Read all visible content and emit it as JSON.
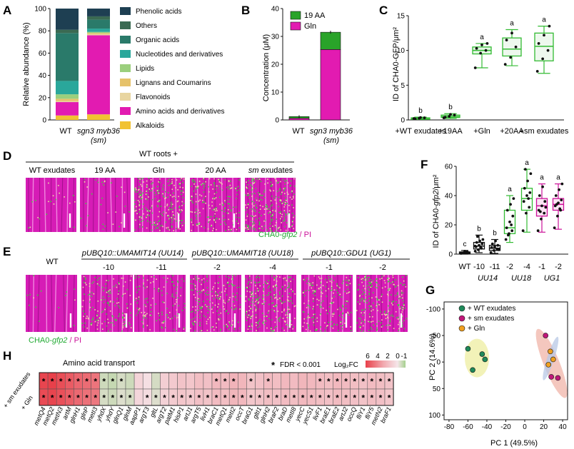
{
  "panels": {
    "A": {
      "label": "A",
      "chart_data": {
        "type": "bar",
        "stacked": true,
        "categories": [
          "WT",
          "sgn3 myb36"
        ],
        "category_sublabels": [
          "",
          "(sm)"
        ],
        "ylabel": "Relative abundance (%)",
        "ylim": [
          0,
          100
        ],
        "yticks": [
          "0",
          "20",
          "40",
          "60",
          "80",
          "100"
        ],
        "legend": [
          "Phenolic acids",
          "Others",
          "Organic acids",
          "Nucleotides and derivatives",
          "Lipids",
          "Lignans and Coumarins",
          "Flavonoids",
          "Amino acids and derivatives",
          "Alkaloids"
        ],
        "series": [
          {
            "name": "Alkaloids",
            "color": "#f1c232",
            "values": [
              4,
              5
            ]
          },
          {
            "name": "Amino acids and derivatives",
            "color": "#e21bb1",
            "values": [
              12,
              71
            ]
          },
          {
            "name": "Flavonoids",
            "color": "#e8d5a0",
            "values": [
              1,
              1
            ]
          },
          {
            "name": "Lignans and Coumarins",
            "color": "#e6c26a",
            "values": [
              2,
              1
            ]
          },
          {
            "name": "Lipids",
            "color": "#9bcf7d",
            "values": [
              4,
              1
            ]
          },
          {
            "name": "Nucleotides and derivatives",
            "color": "#2aa79b",
            "values": [
              12,
              3
            ]
          },
          {
            "name": "Organic acids",
            "color": "#2a7a6a",
            "values": [
              43,
              8
            ]
          },
          {
            "name": "Others",
            "color": "#3a6a52",
            "values": [
              3,
              3
            ]
          },
          {
            "name": "Phenolic acids",
            "color": "#1e3f52",
            "values": [
              19,
              7
            ]
          }
        ]
      }
    },
    "B": {
      "label": "B",
      "chart_data": {
        "type": "bar",
        "stacked": true,
        "categories": [
          "WT",
          "sgn3 myb36"
        ],
        "category_sublabels": [
          "",
          "(sm)"
        ],
        "ylabel": "Concentration (μM)",
        "ylim": [
          0,
          40
        ],
        "yticks": [
          "0",
          "10",
          "20",
          "30",
          "40"
        ],
        "legend": [
          "19 AA",
          "Gln"
        ],
        "series": [
          {
            "name": "Gln",
            "color": "#e21bb1",
            "values": [
              0.6,
              25.3
            ]
          },
          {
            "name": "19 AA",
            "color": "#29a329",
            "values": [
              0.6,
              6.2
            ]
          }
        ]
      }
    },
    "C": {
      "label": "C",
      "chart_data": {
        "type": "box",
        "categories": [
          "+WT exudates",
          "+19AA",
          "+Gln",
          "+20AA",
          "+sm exudates"
        ],
        "ylabel": "ID of CHA0-GFP/μm²",
        "ylim": [
          0,
          15
        ],
        "yticks": [
          "0",
          "5",
          "10",
          "15"
        ],
        "letters": [
          "b",
          "b",
          "a",
          "a",
          "a"
        ],
        "boxes": [
          {
            "min": 0.1,
            "q1": 0.2,
            "median": 0.25,
            "q3": 0.3,
            "max": 0.4
          },
          {
            "min": 0.2,
            "q1": 0.35,
            "median": 0.5,
            "q3": 0.7,
            "max": 0.9
          },
          {
            "min": 7.5,
            "q1": 9.5,
            "median": 10,
            "q3": 10.5,
            "max": 11
          },
          {
            "min": 7.8,
            "q1": 9.2,
            "median": 10.2,
            "q3": 11.8,
            "max": 13
          },
          {
            "min": 6.7,
            "q1": 8.5,
            "median": 10.6,
            "q3": 12.5,
            "max": 13.5
          }
        ],
        "points": [
          [
            0.2,
            0.25,
            0.3,
            0.15,
            0.35
          ],
          [
            0.3,
            0.5,
            0.7,
            0.4,
            0.8
          ],
          [
            7.5,
            9.6,
            10,
            10.3,
            10.8,
            11
          ],
          [
            8,
            9,
            10.5,
            11.5,
            12.5
          ],
          [
            7,
            8.8,
            10,
            11,
            12.2,
            13.5
          ]
        ]
      }
    },
    "D": {
      "label": "D",
      "group_title": "WT roots +",
      "columns": [
        "WT exudates",
        "19 AA",
        "Gln",
        "20 AA"
      ],
      "last_column_prefix": "sm",
      "last_column_suffix": " exudates",
      "legend_strain": "CHA0-",
      "legend_gene": "gfp2",
      "legend_stain": " / PI"
    },
    "E": {
      "label": "E",
      "wt_label": "WT",
      "groups": [
        {
          "construct": "pUBQ10::UMAMIT14 (UU14)",
          "lines": [
            "-10",
            "-11"
          ]
        },
        {
          "construct": "pUBQ10::UMAMIT18 (UU18)",
          "lines": [
            "-2",
            "-4"
          ]
        },
        {
          "construct": "pUBQ10::GDU1 (UG1)",
          "lines": [
            "-1",
            "-2"
          ]
        }
      ],
      "legend_strain": "CHA0-",
      "legend_gene": "gfp2",
      "legend_stain": " / PI"
    },
    "F": {
      "label": "F",
      "chart_data": {
        "type": "box",
        "categories": [
          "WT",
          "-10",
          "-11",
          "-2",
          "-4",
          "-1",
          "-2"
        ],
        "groups": [
          "UU14",
          "UU18",
          "UG1"
        ],
        "ylabel_prefix": "ID of CHA0-",
        "ylabel_gene": "gfp2",
        "ylabel_suffix": "/μm²",
        "ylim": [
          0,
          60
        ],
        "yticks": [
          "0",
          "20",
          "40",
          "60"
        ],
        "letters": [
          "c",
          "b",
          "b",
          "a",
          "a",
          "a",
          "a"
        ],
        "boxes": [
          {
            "min": 0,
            "q1": 0.5,
            "median": 1,
            "q3": 1.5,
            "max": 2.5
          },
          {
            "min": 1,
            "q1": 3.5,
            "median": 5.5,
            "q3": 8,
            "max": 13
          },
          {
            "min": 0.5,
            "q1": 2.5,
            "median": 4,
            "q3": 6,
            "max": 10
          },
          {
            "min": 8,
            "q1": 14,
            "median": 18,
            "q3": 30,
            "max": 40
          },
          {
            "min": 15,
            "q1": 30,
            "median": 38,
            "q3": 45,
            "max": 58
          },
          {
            "min": 15,
            "q1": 26,
            "median": 33,
            "q3": 38,
            "max": 48
          },
          {
            "min": 17,
            "q1": 30,
            "median": 34,
            "q3": 38,
            "max": 48
          }
        ],
        "points": [
          [
            0.5,
            1,
            1.5,
            0.8,
            2,
            1.2
          ],
          [
            2,
            3,
            4,
            5,
            6,
            7,
            8,
            9,
            10,
            12,
            4.5,
            5.5
          ],
          [
            1,
            2.5,
            3.5,
            4.5,
            5,
            6,
            7,
            9,
            3
          ],
          [
            10,
            14,
            16,
            18,
            22,
            26,
            30,
            34,
            38,
            13,
            20
          ],
          [
            16,
            28,
            32,
            36,
            40,
            42,
            45,
            50,
            55,
            58,
            38
          ],
          [
            16,
            24,
            28,
            30,
            33,
            36,
            40,
            46,
            32,
            29
          ],
          [
            18,
            26,
            30,
            33,
            35,
            37,
            40,
            44,
            48,
            34,
            31
          ]
        ]
      }
    },
    "G": {
      "label": "G",
      "chart_data": {
        "type": "scatter",
        "xlabel": "PC 1 (49.5%)",
        "ylabel": "PC 2 (14.6%)",
        "xlim": [
          -80,
          40
        ],
        "ylim": [
          -100,
          100
        ],
        "xticks": [
          "-80",
          "-60",
          "-40",
          "-20",
          "0",
          "20",
          "40"
        ],
        "yticks": [
          "-100",
          "-50",
          "0",
          "50",
          "100"
        ],
        "series": [
          {
            "name": "+ WT exudates",
            "color": "#1f8a5a",
            "ellipse": "#eeeea0",
            "x": [
              -45,
              -60,
              -55,
              -42
            ],
            "y": [
              -15,
              -25,
              15,
              -5
            ]
          },
          {
            "name": "+ sm exudates",
            "color": "#c0187a",
            "ellipse": "#f0b4a8",
            "x": [
              22,
              35,
              28
            ],
            "y": [
              -50,
              30,
              28
            ]
          },
          {
            "name": "+ Gln",
            "color": "#f0a020",
            "ellipse": "#b8c8e6",
            "x": [
              27,
              30,
              25
            ],
            "y": [
              -20,
              -5,
              5
            ]
          }
        ]
      }
    },
    "H": {
      "label": "H",
      "title": "Amino acid transport",
      "fdr_note": "FDR < 0.001",
      "fdr_star": "*",
      "scale_label": "Log₂FC",
      "scale_ticks": [
        "6",
        "4",
        "2",
        "0",
        "-1"
      ],
      "row_labels": [
        "+ sm exudates",
        "+ Gln"
      ],
      "chart_data": {
        "type": "heatmap",
        "genes": [
          "metQ4",
          "metQ2",
          "metN3",
          "artM",
          "glnH1",
          "glnP",
          "metI3",
          "yhdX",
          "yhdY",
          "glnQ1",
          "glnM",
          "aapP1",
          "argT3",
          "gltL",
          "argT2",
          "patM1",
          "hisP1",
          "artJ1",
          "argT5",
          "livH1",
          "braC1",
          "metQ1",
          "metI2",
          "occT",
          "braG1",
          "gltI1",
          "glnH2",
          "braF2",
          "braD",
          "metI8",
          "yecC",
          "yecS1",
          "livF1",
          "braE1",
          "braE2",
          "artJ2",
          "occQ",
          "fliY1",
          "fliY5",
          "metN2",
          "braF1"
        ],
        "values": [
          [
            5.8,
            6,
            5.5,
            5,
            4.6,
            4.4,
            4.1,
            -0.5,
            -0.6,
            -0.4,
            -0.5,
            0.6,
            0.2,
            -0.4,
            0.8,
            1,
            1.2,
            1.1,
            1.4,
            1.3,
            1.6,
            1.5,
            1.8,
            1.7,
            1.2,
            1.3,
            1.5,
            1.4,
            1.6,
            1.5,
            1.7,
            1.6,
            1.5,
            1.4,
            1.6,
            1.5,
            1.4,
            1.3,
            1.5,
            1.4,
            1.2
          ],
          [
            5.6,
            5.8,
            5.4,
            4.9,
            4.5,
            4.2,
            4,
            -0.4,
            -0.5,
            -0.3,
            -0.4,
            0.5,
            0.3,
            -0.3,
            0.7,
            0.9,
            1.1,
            1,
            1.3,
            1.2,
            1.5,
            1.4,
            1.7,
            1.6,
            1.1,
            1.2,
            1.4,
            1.3,
            1.5,
            1.4,
            1.6,
            1.5,
            1.4,
            1.3,
            1.5,
            1.4,
            1.3,
            1.2,
            1.4,
            1.3,
            1.1
          ]
        ],
        "significant": [
          [
            1,
            1,
            1,
            1,
            1,
            1,
            1,
            1,
            1,
            1,
            0,
            0,
            0,
            0,
            0,
            0,
            0,
            0,
            0,
            0,
            1,
            1,
            1,
            0,
            1,
            0,
            1,
            0,
            0,
            0,
            0,
            0,
            1,
            1,
            1,
            1,
            1,
            1,
            1,
            1,
            1
          ],
          [
            1,
            1,
            1,
            1,
            1,
            1,
            1,
            1,
            1,
            1,
            1,
            0,
            1,
            1,
            1,
            1,
            1,
            1,
            1,
            1,
            1,
            1,
            1,
            1,
            1,
            1,
            1,
            1,
            1,
            1,
            1,
            1,
            1,
            1,
            1,
            1,
            1,
            1,
            1,
            1,
            1
          ]
        ]
      }
    }
  },
  "colors": {
    "magenta": "#d61cb6",
    "green": "#33bb33",
    "axis": "#111111"
  }
}
